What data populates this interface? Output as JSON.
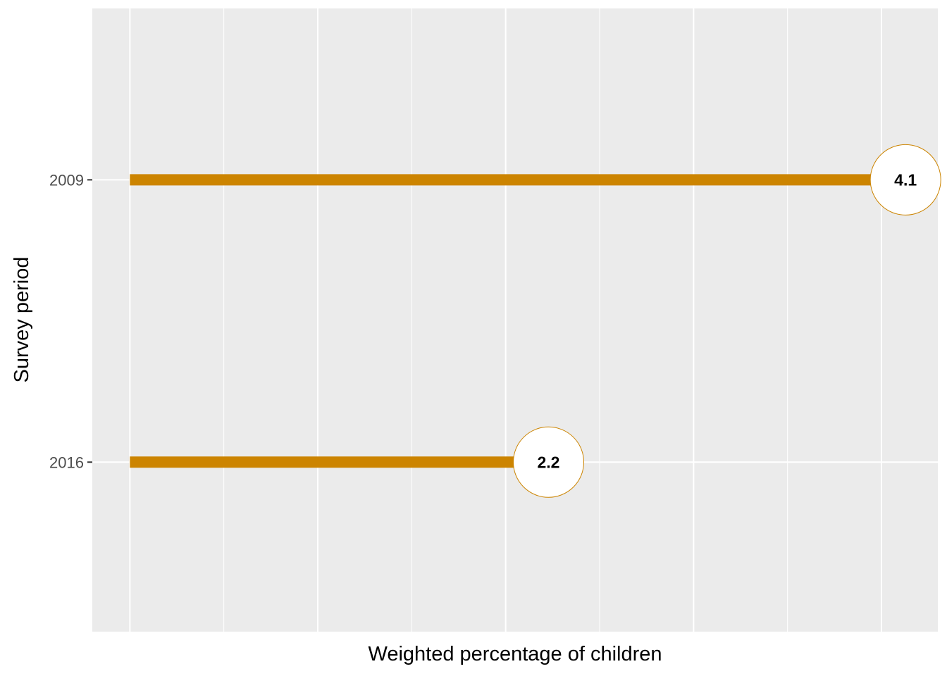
{
  "chart_data": {
    "type": "bar",
    "orientation": "horizontal",
    "style": "lollipop",
    "categories": [
      "2009",
      "2016"
    ],
    "values": [
      4.1,
      2.2
    ],
    "data_labels": [
      "4.1",
      "2.2"
    ],
    "title": "",
    "xlabel": "Weighted percentage of children",
    "ylabel": "Survey period",
    "xlim": [
      -0.2,
      4.3
    ],
    "x_tick_labels_shown": false,
    "grid": true,
    "legend": "none",
    "colors": {
      "series": "#cc8400",
      "panel_background": "#ebebeb",
      "grid": "#ffffff",
      "label_fill": "#ffffff"
    }
  }
}
